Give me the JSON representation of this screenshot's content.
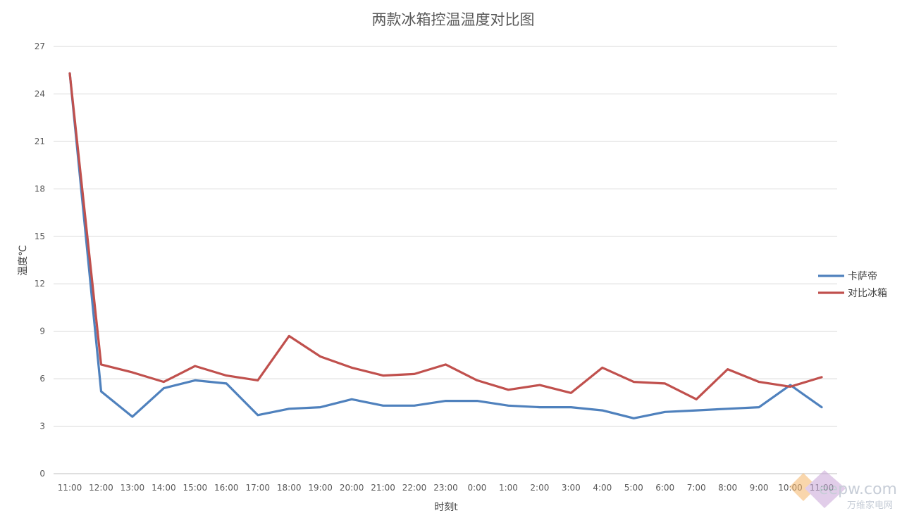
{
  "chart_data": {
    "type": "line",
    "title": "两款冰箱控温温度对比图",
    "xlabel": "时刻t",
    "ylabel": "温度℃",
    "ylim": [
      0,
      27
    ],
    "yticks": [
      "0",
      "3",
      "6",
      "9",
      "12",
      "15",
      "18",
      "21",
      "24",
      "27"
    ],
    "grid": true,
    "legend_position": "right",
    "categories": [
      "11:00",
      "12:00",
      "13:00",
      "14:00",
      "15:00",
      "16:00",
      "17:00",
      "18:00",
      "19:00",
      "20:00",
      "21:00",
      "22:00",
      "23:00",
      "0:00",
      "1:00",
      "2:00",
      "3:00",
      "4:00",
      "5:00",
      "6:00",
      "7:00",
      "8:00",
      "9:00",
      "10:00",
      "11:00"
    ],
    "series": [
      {
        "name": "卡萨帝",
        "color": "#4f81bd",
        "values": [
          25.3,
          5.2,
          3.6,
          5.4,
          5.9,
          5.7,
          3.7,
          4.1,
          4.2,
          4.7,
          4.3,
          4.3,
          4.6,
          4.6,
          4.3,
          4.2,
          4.2,
          4.0,
          3.5,
          3.9,
          4.0,
          4.1,
          4.2,
          5.6,
          4.2
        ]
      },
      {
        "name": "对比冰箱",
        "color": "#c0504d",
        "values": [
          25.3,
          6.9,
          6.4,
          5.8,
          6.8,
          6.2,
          5.9,
          8.7,
          7.4,
          6.7,
          6.2,
          6.3,
          6.9,
          5.9,
          5.3,
          5.6,
          5.1,
          6.7,
          5.8,
          5.7,
          4.7,
          6.6,
          5.8,
          5.5,
          6.1
        ]
      }
    ]
  },
  "watermark": {
    "text": "eepw.com",
    "subtext": "万维家电网"
  }
}
